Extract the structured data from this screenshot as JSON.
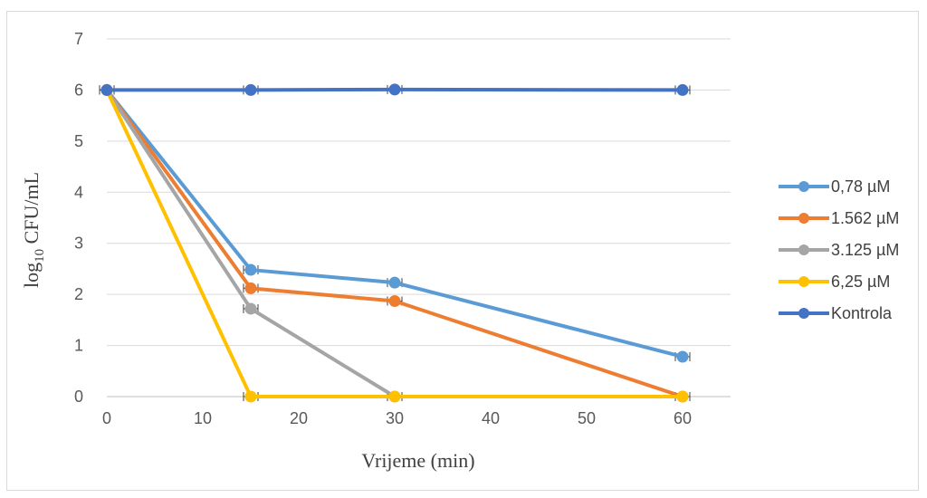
{
  "chart_data": {
    "type": "line",
    "title": "",
    "xlabel": "Vrijeme (min)",
    "ylabel": {
      "main": "log",
      "sub": "10",
      "rest": " CFU/mL"
    },
    "xlim": [
      0,
      65
    ],
    "ylim": [
      0,
      7
    ],
    "x_ticks": [
      "0",
      "10",
      "20",
      "30",
      "40",
      "50",
      "60"
    ],
    "y_ticks": [
      "0",
      "1",
      "2",
      "3",
      "4",
      "5",
      "6",
      "7"
    ],
    "grid": "horizontal",
    "legend_position": "right",
    "error_bars": true,
    "series": [
      {
        "name": "0,78 µM",
        "color": "#5b9bd5",
        "x": [
          0,
          15,
          30,
          60
        ],
        "y": [
          6,
          2.48,
          2.23,
          0.78
        ]
      },
      {
        "name": "1.562 µM",
        "color": "#ed7d31",
        "x": [
          0,
          15,
          30,
          60
        ],
        "y": [
          6,
          2.12,
          1.87,
          0
        ]
      },
      {
        "name": "3.125 µM",
        "color": "#a5a5a5",
        "x": [
          0,
          15,
          30
        ],
        "y": [
          6,
          1.72,
          0
        ]
      },
      {
        "name": "6,25 µM",
        "color": "#ffc000",
        "x": [
          0,
          15,
          30,
          60
        ],
        "y": [
          6,
          0,
          0,
          0
        ]
      },
      {
        "name": "Kontrola",
        "color": "#4472c4",
        "x": [
          0,
          15,
          30,
          60
        ],
        "y": [
          6,
          6,
          6.01,
          6
        ]
      }
    ]
  }
}
